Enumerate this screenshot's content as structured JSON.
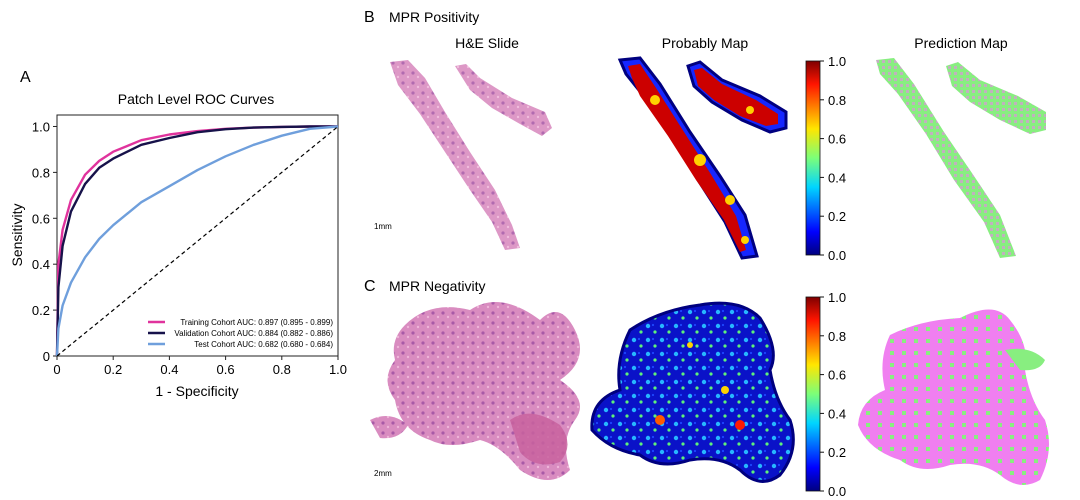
{
  "panels": {
    "a_label": "A",
    "b_label": "B",
    "c_label": "C",
    "b_title": "MPR Positivity",
    "c_title": "MPR Negativity",
    "col_he": "H&E Slide",
    "col_prob": "Probably Map",
    "col_pred": "Prediction Map",
    "scale_b": "1mm",
    "scale_c": "2mm"
  },
  "colorbar": {
    "ticks": [
      "0.0",
      "0.2",
      "0.4",
      "0.6",
      "0.8",
      "1.0"
    ]
  },
  "colors": {
    "training": "#e0339d",
    "validation": "#17124a",
    "test": "#6f9fdc",
    "tissue_he": "#d98cc0",
    "pred_positive": "#88ee80",
    "pred_negative": "#f07ff0"
  },
  "chart_data": {
    "type": "line",
    "title": "Patch Level ROC Curves",
    "xlabel": "1 - Specificity",
    "ylabel": "Sensitivity",
    "xlim": [
      0,
      1
    ],
    "ylim": [
      0,
      1.05
    ],
    "x_ticks": [
      "0",
      "0.2",
      "0.4",
      "0.6",
      "0.8",
      "1.0"
    ],
    "y_ticks": [
      "0",
      "0.2",
      "0.4",
      "0.6",
      "0.8",
      "1.0"
    ],
    "legend_position": "lower-right",
    "x": [
      0,
      0.005,
      0.02,
      0.05,
      0.1,
      0.15,
      0.2,
      0.3,
      0.4,
      0.5,
      0.6,
      0.7,
      0.8,
      0.9,
      1.0
    ],
    "series": [
      {
        "name": "Training Cohort AUC: 0.897 (0.895 - 0.899)",
        "values": [
          0,
          0.4,
          0.55,
          0.68,
          0.79,
          0.85,
          0.89,
          0.94,
          0.965,
          0.98,
          0.99,
          0.995,
          0.998,
          1.0,
          1.0
        ]
      },
      {
        "name": "Validation Cohort AUC: 0.884 (0.882 - 0.886)",
        "values": [
          0,
          0.3,
          0.48,
          0.63,
          0.75,
          0.82,
          0.86,
          0.92,
          0.95,
          0.975,
          0.988,
          0.995,
          0.998,
          1.0,
          1.0
        ]
      },
      {
        "name": "Test Cohort AUC: 0.682 (0.680 - 0.684)",
        "values": [
          0,
          0.12,
          0.22,
          0.32,
          0.43,
          0.51,
          0.57,
          0.67,
          0.74,
          0.81,
          0.87,
          0.92,
          0.96,
          0.99,
          1.0
        ]
      },
      {
        "name": "",
        "values": [
          0,
          0.005,
          0.02,
          0.05,
          0.1,
          0.15,
          0.2,
          0.3,
          0.4,
          0.5,
          0.6,
          0.7,
          0.8,
          0.9,
          1.0
        ]
      }
    ]
  }
}
